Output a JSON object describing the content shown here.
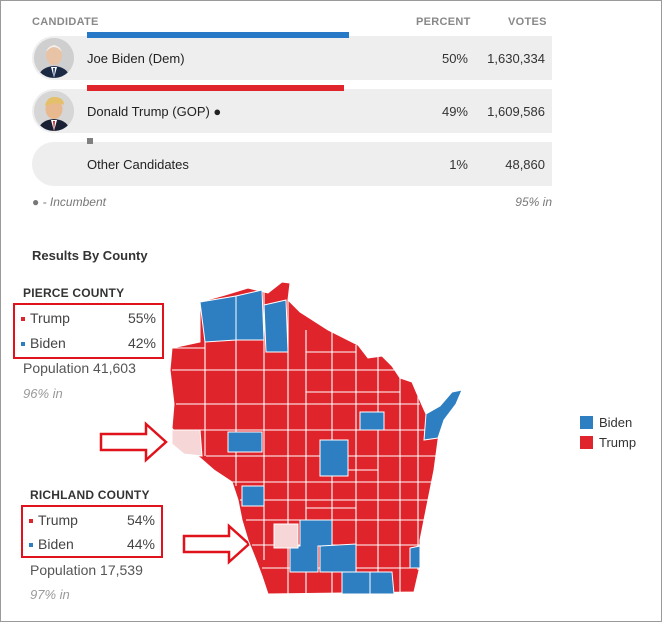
{
  "header": {
    "candidate": "CANDIDATE",
    "percent": "PERCENT",
    "votes": "VOTES"
  },
  "candidates": [
    {
      "name": "Joe Biden (Dem)",
      "percent": "50%",
      "votes": "1,630,334",
      "bar_fraction": 0.5,
      "color": "#2878c8"
    },
    {
      "name": "Donald Trump (GOP) ●",
      "percent": "49%",
      "votes": "1,609,586",
      "bar_fraction": 0.49,
      "color": "#e0242b"
    },
    {
      "name": "Other Candidates",
      "percent": "1%",
      "votes": "48,860",
      "bar_fraction": 0.01,
      "color": "#808080"
    }
  ],
  "footnote": {
    "incumbent": "● - Incumbent",
    "reporting": "95% in"
  },
  "section_title": "Results By County",
  "counties": [
    {
      "title": "PIERCE COUNTY",
      "trump_label": "Trump",
      "trump_pct": "55%",
      "biden_label": "Biden",
      "biden_pct": "42%",
      "population": "Population 41,603",
      "reporting": "96% in"
    },
    {
      "title": "RICHLAND COUNTY",
      "trump_label": "Trump",
      "trump_pct": "54%",
      "biden_label": "Biden",
      "biden_pct": "44%",
      "population": "Population 17,539",
      "reporting": "97% in"
    }
  ],
  "legend": {
    "biden": "Biden",
    "trump": "Trump"
  },
  "colors": {
    "trump": "#e0242b",
    "biden": "#2e7ec2",
    "highlight": "#f6d6d6",
    "row_bg": "#eeeeee"
  }
}
